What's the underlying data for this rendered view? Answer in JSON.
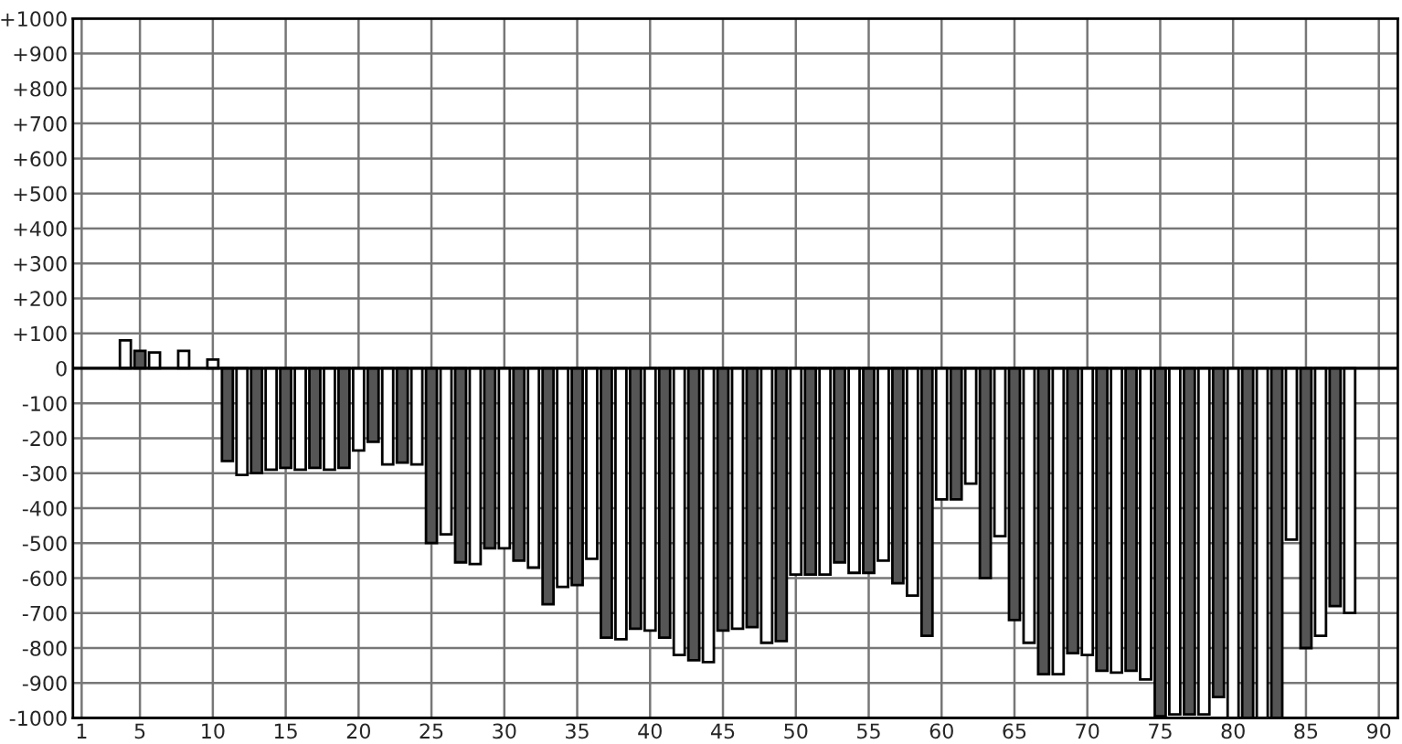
{
  "chart_data": {
    "type": "bar",
    "x": [
      4,
      5,
      6,
      8,
      10,
      11,
      12,
      13,
      14,
      15,
      16,
      17,
      18,
      19,
      20,
      21,
      22,
      23,
      24,
      25,
      26,
      27,
      28,
      29,
      30,
      31,
      32,
      33,
      34,
      35,
      36,
      37,
      38,
      39,
      40,
      41,
      42,
      43,
      44,
      45,
      46,
      47,
      48,
      49,
      50,
      51,
      52,
      53,
      54,
      55,
      56,
      57,
      58,
      59,
      60,
      61,
      62,
      63,
      64,
      65,
      66,
      67,
      68,
      69,
      70,
      71,
      72,
      73,
      74,
      75,
      76,
      77,
      78,
      79,
      80,
      81,
      82,
      83,
      84,
      85,
      86,
      87,
      88
    ],
    "values": [
      80,
      50,
      45,
      50,
      25,
      -265,
      -305,
      -300,
      -290,
      -285,
      -290,
      -285,
      -290,
      -285,
      -235,
      -210,
      -275,
      -270,
      -275,
      -500,
      -475,
      -555,
      -560,
      -515,
      -515,
      -550,
      -570,
      -675,
      -625,
      -620,
      -545,
      -770,
      -775,
      -745,
      -750,
      -770,
      -820,
      -835,
      -840,
      -750,
      -745,
      -740,
      -785,
      -780,
      -590,
      -590,
      -590,
      -555,
      -585,
      -585,
      -550,
      -615,
      -650,
      -765,
      -375,
      -375,
      -330,
      -600,
      -480,
      -720,
      -785,
      -875,
      -875,
      -815,
      -820,
      -865,
      -870,
      -865,
      -890,
      -995,
      -990,
      -990,
      -990,
      -940,
      -1000,
      -1000,
      -1000,
      -1000,
      -490,
      -800,
      -765,
      -680,
      -700
    ],
    "colors": [
      "#ffffff",
      "#555555",
      "#ffffff",
      "#ffffff",
      "#ffffff",
      "#555555",
      "#ffffff",
      "#555555",
      "#ffffff",
      "#555555",
      "#ffffff",
      "#555555",
      "#ffffff",
      "#555555",
      "#ffffff",
      "#555555",
      "#ffffff",
      "#555555",
      "#ffffff",
      "#555555",
      "#ffffff",
      "#555555",
      "#ffffff",
      "#555555",
      "#ffffff",
      "#555555",
      "#ffffff",
      "#555555",
      "#ffffff",
      "#555555",
      "#ffffff",
      "#555555",
      "#ffffff",
      "#555555",
      "#ffffff",
      "#555555",
      "#ffffff",
      "#555555",
      "#ffffff",
      "#555555",
      "#ffffff",
      "#555555",
      "#ffffff",
      "#555555",
      "#ffffff",
      "#555555",
      "#ffffff",
      "#555555",
      "#ffffff",
      "#555555",
      "#ffffff",
      "#555555",
      "#ffffff",
      "#555555",
      "#ffffff",
      "#555555",
      "#ffffff",
      "#555555",
      "#ffffff",
      "#555555",
      "#ffffff",
      "#555555",
      "#ffffff",
      "#555555",
      "#ffffff",
      "#555555",
      "#ffffff",
      "#555555",
      "#ffffff",
      "#555555",
      "#ffffff",
      "#555555",
      "#ffffff",
      "#555555",
      "#ffffff",
      "#555555",
      "#ffffff",
      "#555555",
      "#ffffff",
      "#555555",
      "#ffffff",
      "#555555",
      "#ffffff"
    ],
    "xlim": [
      0.4,
      91.3
    ],
    "xticks": [
      1,
      5,
      10,
      15,
      20,
      25,
      30,
      35,
      40,
      45,
      50,
      55,
      60,
      65,
      70,
      75,
      80,
      85,
      90
    ],
    "ylim": [
      -1000,
      1000
    ],
    "yticks": [
      {
        "value": 1000,
        "label": "+1000"
      },
      {
        "value": 900,
        "label": "+900"
      },
      {
        "value": 800,
        "label": "+800"
      },
      {
        "value": 700,
        "label": "+700"
      },
      {
        "value": 600,
        "label": "+600"
      },
      {
        "value": 500,
        "label": "+500"
      },
      {
        "value": 400,
        "label": "+400"
      },
      {
        "value": 300,
        "label": "+300"
      },
      {
        "value": 200,
        "label": "+200"
      },
      {
        "value": 100,
        "label": "+100"
      },
      0,
      -100,
      -200,
      -300,
      -400,
      -500,
      -600,
      -700,
      -800,
      -900,
      -1000
    ],
    "ref_lines": [
      {
        "axis": "y",
        "value": 0,
        "color": "#000000"
      }
    ],
    "grid": true,
    "legend": false
  }
}
